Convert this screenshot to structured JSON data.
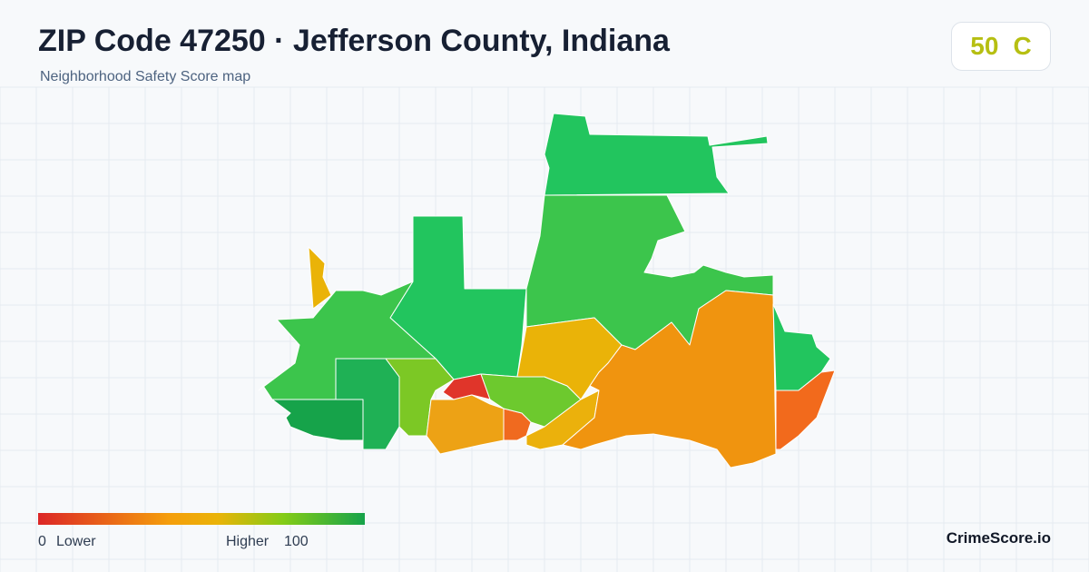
{
  "header": {
    "title": "ZIP Code 47250 · Jefferson County, Indiana",
    "subtitle": "Neighborhood Safety Score map"
  },
  "score": {
    "value": 50,
    "grade": "C"
  },
  "legend": {
    "min": 0,
    "min_label": "Lower",
    "max_label": "Higher",
    "max": 100
  },
  "brand": "CrimeScore.io"
}
